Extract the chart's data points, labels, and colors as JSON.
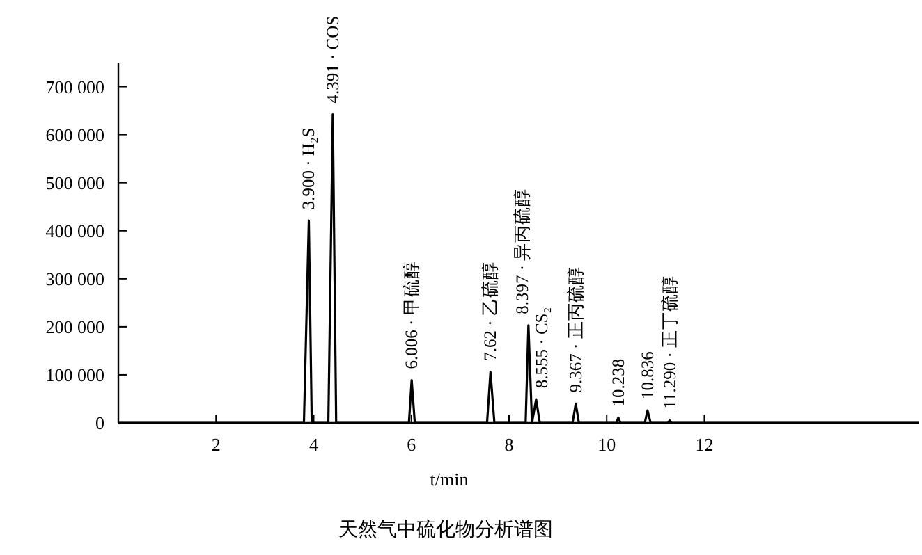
{
  "chart_data": {
    "type": "line",
    "title": "天然气中硫化物分析谱图",
    "xlabel": "t/min",
    "xlim": [
      0,
      16.4
    ],
    "ylim": [
      0,
      750000
    ],
    "xticks": [
      2,
      4,
      6,
      8,
      10,
      12
    ],
    "yticks": [
      {
        "value": 0,
        "label": "0"
      },
      {
        "value": 100000,
        "label": "100 000"
      },
      {
        "value": 200000,
        "label": "200 000"
      },
      {
        "value": 300000,
        "label": "300 000"
      },
      {
        "value": 400000,
        "label": "400 000"
      },
      {
        "value": 500000,
        "label": "500 000"
      },
      {
        "value": 600000,
        "label": "600 000"
      },
      {
        "value": 700000,
        "label": "700 000"
      }
    ],
    "x": [
      0,
      3.8,
      3.9,
      3.96,
      4.3,
      4.391,
      4.46,
      5.95,
      6.006,
      6.07,
      7.55,
      7.62,
      7.7,
      8.34,
      8.397,
      8.47,
      8.555,
      8.63,
      9.3,
      9.367,
      9.43,
      10.2,
      10.238,
      10.28,
      10.78,
      10.836,
      10.9,
      11.25,
      11.29,
      11.33,
      16.4
    ],
    "values": [
      0,
      0,
      421000,
      0,
      0,
      642000,
      0,
      0,
      89000,
      0,
      0,
      106000,
      0,
      0,
      203000,
      0,
      49000,
      0,
      0,
      40000,
      0,
      0,
      11000,
      0,
      0,
      26000,
      0,
      0,
      5000,
      0,
      0
    ],
    "color": "#000000",
    "annotations": [
      {
        "text": "3.900 · H₂S",
        "x": 3.9,
        "y": 421000
      },
      {
        "text": "4.391 · COS",
        "x": 4.391,
        "y": 642000
      },
      {
        "text": "6.006 · 甲硫醇",
        "x": 6.006,
        "y": 89000
      },
      {
        "text": "7.62 · 乙硫醇",
        "x": 7.62,
        "y": 106000
      },
      {
        "text": "8.397 · 异丙硫醇",
        "x": 8.397,
        "y": 203000
      },
      {
        "text": "8.555 · CS₂",
        "x": 8.555,
        "y": 49000
      },
      {
        "text": "9.367 · 正丙硫醇",
        "x": 9.367,
        "y": 40000
      },
      {
        "text": "10.238",
        "x": 10.238,
        "y": 11000
      },
      {
        "text": "10.836",
        "x": 10.836,
        "y": 26000
      },
      {
        "text": "11.290 · 正丁硫醇",
        "x": 11.29,
        "y": 5000
      }
    ]
  }
}
